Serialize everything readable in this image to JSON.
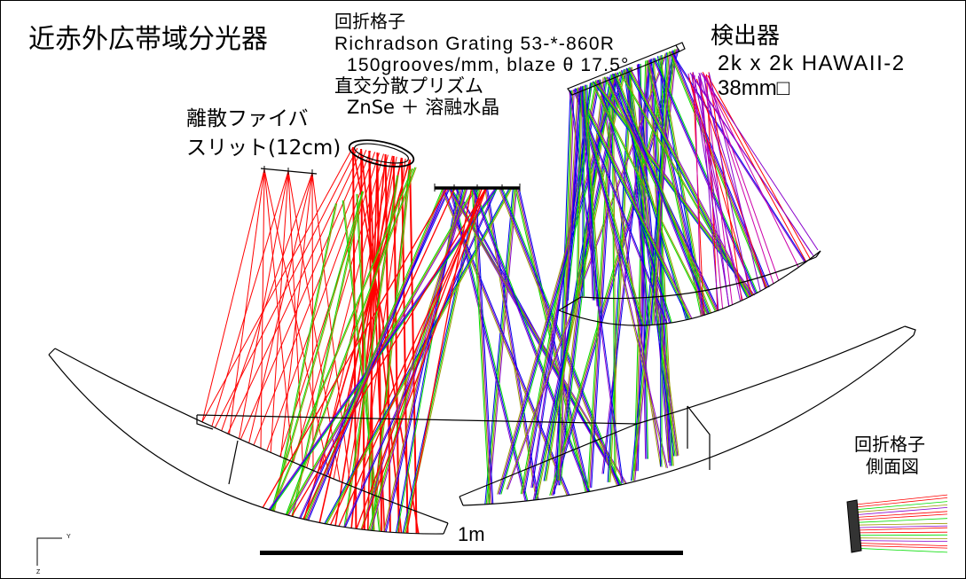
{
  "title": "近赤外広帯域分光器",
  "grating_label": {
    "name": "回折格子",
    "model": "Richradson Grating 53-*-860R",
    "spec": "150grooves/mm, blaze θ 17.5°"
  },
  "prism_label": {
    "name": "直交分散プリズム",
    "material": "ZnSe ＋ 溶融水晶"
  },
  "detector_label": {
    "name": "検出器",
    "format": "2k x 2k HAWAII-2",
    "size": "38mm□"
  },
  "slit_label": {
    "line1": "離散ファイバ",
    "line2": "スリット(12cm)"
  },
  "side_view_label": {
    "line1": "回折格子",
    "line2": "側面図"
  },
  "scale_bar": {
    "label": "1m"
  },
  "axes_indicator": {
    "y": "Y",
    "z": "Z"
  },
  "colors": {
    "optics": "#000000",
    "red": "#ff0000",
    "green": "#00dd00",
    "olive": "#999900",
    "purple": "#8800cc",
    "blue": "#0000ee",
    "magenta": "#cc00aa",
    "grating_side": "#333333"
  }
}
